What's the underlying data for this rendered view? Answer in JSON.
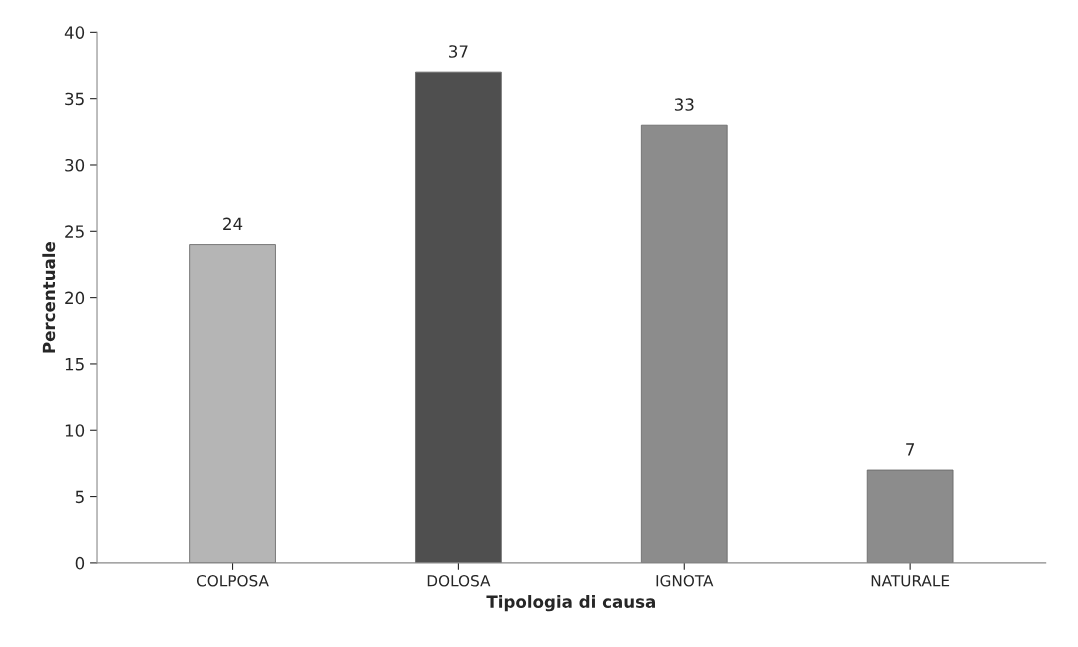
{
  "chart_data": {
    "type": "bar",
    "xlabel": "Tipologia di causa",
    "ylabel": "Percentuale",
    "categories": [
      "COLPOSA",
      "DOLOSA",
      "IGNOTA",
      "NATURALE"
    ],
    "values": [
      24,
      37,
      33,
      7
    ],
    "colors": [
      "#b5b5b5",
      "#4f4f4f",
      "#8c8c8c",
      "#8c8c8c"
    ],
    "ylim": [
      0,
      40
    ],
    "yticks": [
      0,
      5,
      10,
      15,
      20,
      25,
      30,
      35,
      40
    ],
    "data_labels": true,
    "grid": false,
    "legend": false
  }
}
